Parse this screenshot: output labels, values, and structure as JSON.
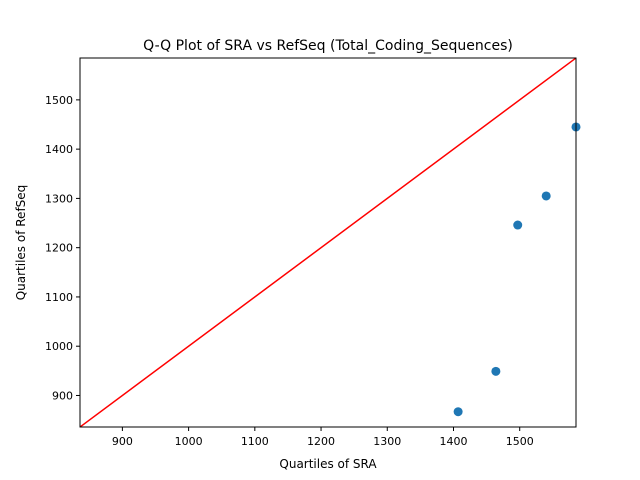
{
  "chart_data": {
    "type": "scatter",
    "title": "Q-Q Plot of SRA vs RefSeq (Total_Coding_Sequences)",
    "xlabel": "Quartiles of SRA",
    "ylabel": "Quartiles of RefSeq",
    "xlim": [
      836,
      1585
    ],
    "ylim": [
      836,
      1585
    ],
    "xticks": [
      900,
      1000,
      1100,
      1200,
      1300,
      1400,
      1500
    ],
    "yticks": [
      900,
      1000,
      1100,
      1200,
      1300,
      1400,
      1500
    ],
    "grid": false,
    "legend": "none",
    "series": [
      {
        "points": [
          {
            "x": 1407,
            "y": 867
          },
          {
            "x": 1464,
            "y": 949
          },
          {
            "x": 1497,
            "y": 1246
          },
          {
            "x": 1540,
            "y": 1305
          },
          {
            "x": 1585,
            "y": 1445
          }
        ],
        "color": "#1f77b4"
      }
    ],
    "reference_line": {
      "from": [
        836,
        836
      ],
      "to": [
        1585,
        1585
      ],
      "color": "#ff0000"
    }
  }
}
